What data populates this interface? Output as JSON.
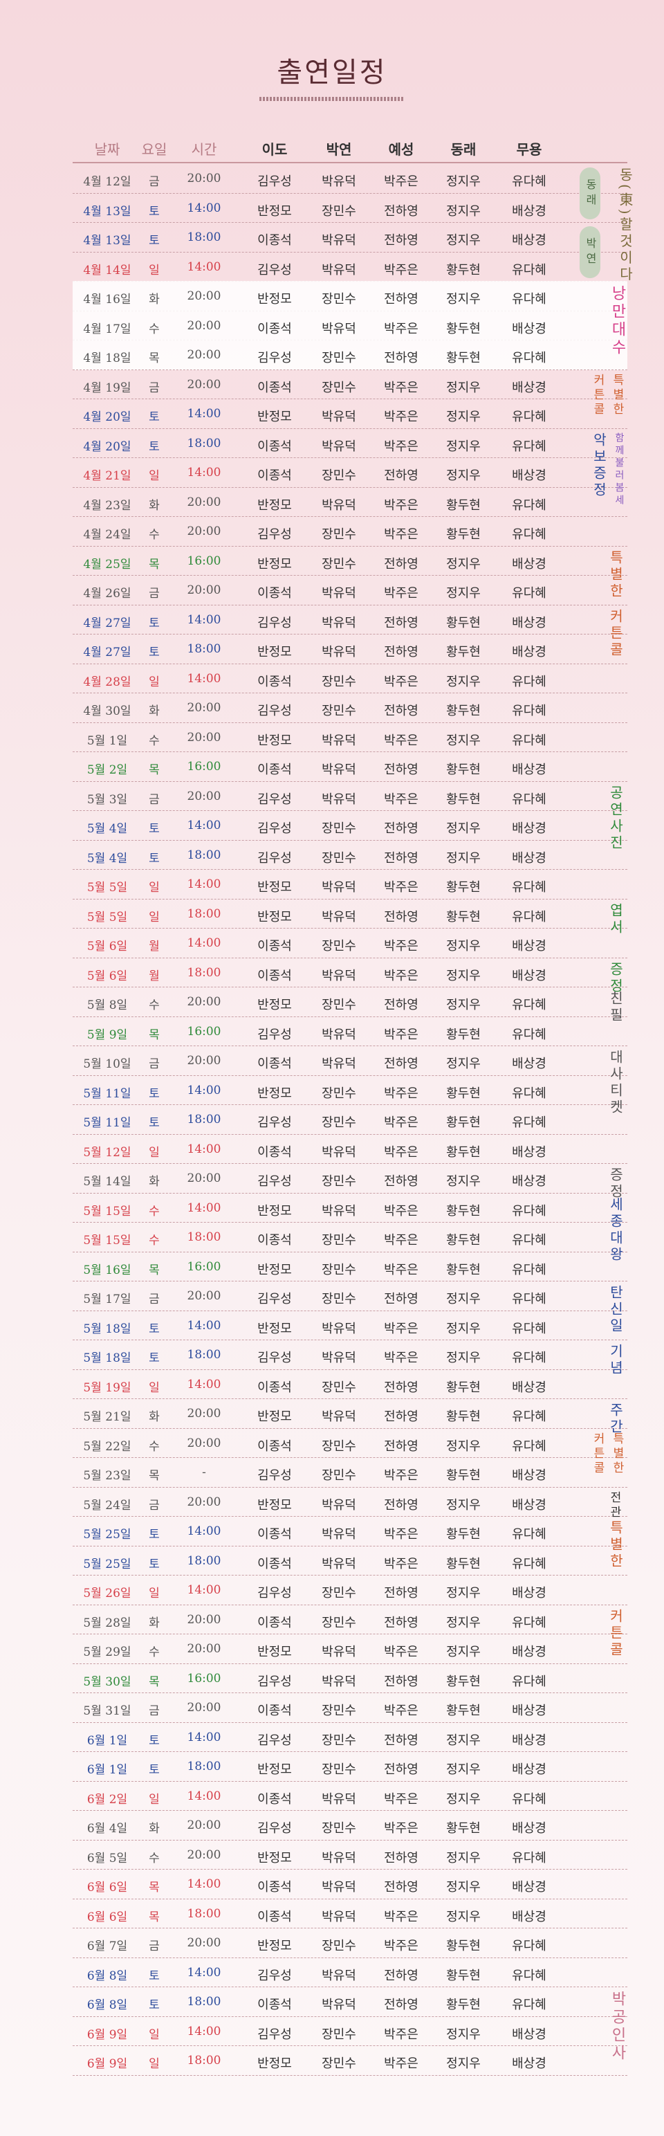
{
  "title": "출연일정",
  "colors": {
    "weekday": "#555555",
    "saturday": "#2d4c9c",
    "sunday": "#d6404a",
    "special": "#2f8a3a",
    "header_muted": "#b57b84"
  },
  "header": [
    "날짜",
    "요일",
    "시간",
    "이도",
    "박연",
    "예성",
    "동래",
    "무용"
  ],
  "rows": [
    [
      "4월 12일",
      "금",
      "20:00",
      "김우성",
      "박유덕",
      "박주은",
      "정지우",
      "유다혜",
      "wd"
    ],
    [
      "4월 13일",
      "토",
      "14:00",
      "반정모",
      "장민수",
      "전하영",
      "정지우",
      "배상경",
      "sat"
    ],
    [
      "4월 13일",
      "토",
      "18:00",
      "이종석",
      "박유덕",
      "전하영",
      "정지우",
      "배상경",
      "sat"
    ],
    [
      "4월 14일",
      "일",
      "14:00",
      "김우성",
      "박유덕",
      "박주은",
      "황두현",
      "유다혜",
      "sun"
    ],
    [
      "4월 16일",
      "화",
      "20:00",
      "반정모",
      "장민수",
      "전하영",
      "정지우",
      "유다혜",
      "wd"
    ],
    [
      "4월 17일",
      "수",
      "20:00",
      "이종석",
      "박유덕",
      "박주은",
      "황두현",
      "배상경",
      "wd"
    ],
    [
      "4월 18일",
      "목",
      "20:00",
      "김우성",
      "장민수",
      "전하영",
      "황두현",
      "유다혜",
      "wd"
    ],
    [
      "4월 19일",
      "금",
      "20:00",
      "이종석",
      "장민수",
      "박주은",
      "정지우",
      "배상경",
      "wd"
    ],
    [
      "4월 20일",
      "토",
      "14:00",
      "반정모",
      "박유덕",
      "박주은",
      "정지우",
      "유다혜",
      "sat"
    ],
    [
      "4월 20일",
      "토",
      "18:00",
      "이종석",
      "박유덕",
      "박주은",
      "정지우",
      "유다혜",
      "sat"
    ],
    [
      "4월 21일",
      "일",
      "14:00",
      "이종석",
      "장민수",
      "전하영",
      "정지우",
      "배상경",
      "sun"
    ],
    [
      "4월 23일",
      "화",
      "20:00",
      "반정모",
      "박유덕",
      "박주은",
      "황두현",
      "유다혜",
      "wd"
    ],
    [
      "4월 24일",
      "수",
      "20:00",
      "김우성",
      "장민수",
      "박주은",
      "황두현",
      "유다혜",
      "wd"
    ],
    [
      "4월 25일",
      "목",
      "16:00",
      "반정모",
      "장민수",
      "전하영",
      "정지우",
      "배상경",
      "thu16"
    ],
    [
      "4월 26일",
      "금",
      "20:00",
      "이종석",
      "박유덕",
      "박주은",
      "정지우",
      "유다혜",
      "wd"
    ],
    [
      "4월 27일",
      "토",
      "14:00",
      "김우성",
      "박유덕",
      "전하영",
      "황두현",
      "배상경",
      "sat"
    ],
    [
      "4월 27일",
      "토",
      "18:00",
      "반정모",
      "박유덕",
      "전하영",
      "황두현",
      "배상경",
      "sat"
    ],
    [
      "4월 28일",
      "일",
      "14:00",
      "이종석",
      "장민수",
      "박주은",
      "정지우",
      "유다혜",
      "sun"
    ],
    [
      "4월 30일",
      "화",
      "20:00",
      "김우성",
      "장민수",
      "전하영",
      "황두현",
      "유다혜",
      "wd"
    ],
    [
      "5월 1일",
      "수",
      "20:00",
      "반정모",
      "박유덕",
      "박주은",
      "정지우",
      "유다혜",
      "wd"
    ],
    [
      "5월 2일",
      "목",
      "16:00",
      "이종석",
      "박유덕",
      "전하영",
      "황두현",
      "배상경",
      "thu16"
    ],
    [
      "5월 3일",
      "금",
      "20:00",
      "김우성",
      "박유덕",
      "박주은",
      "황두현",
      "유다혜",
      "wd"
    ],
    [
      "5월 4일",
      "토",
      "14:00",
      "김우성",
      "장민수",
      "전하영",
      "정지우",
      "배상경",
      "sat"
    ],
    [
      "5월 4일",
      "토",
      "18:00",
      "김우성",
      "장민수",
      "전하영",
      "정지우",
      "배상경",
      "sat"
    ],
    [
      "5월 5일",
      "일",
      "14:00",
      "반정모",
      "박유덕",
      "박주은",
      "황두현",
      "유다혜",
      "sun"
    ],
    [
      "5월 5일",
      "일",
      "18:00",
      "반정모",
      "박유덕",
      "전하영",
      "황두현",
      "유다혜",
      "sun"
    ],
    [
      "5월 6일",
      "월",
      "14:00",
      "이종석",
      "장민수",
      "박주은",
      "정지우",
      "배상경",
      "sun"
    ],
    [
      "5월 6일",
      "월",
      "18:00",
      "이종석",
      "박유덕",
      "박주은",
      "정지우",
      "배상경",
      "sun"
    ],
    [
      "5월 8일",
      "수",
      "20:00",
      "반정모",
      "장민수",
      "전하영",
      "정지우",
      "유다혜",
      "wd"
    ],
    [
      "5월 9일",
      "목",
      "16:00",
      "김우성",
      "박유덕",
      "박주은",
      "황두현",
      "유다혜",
      "thu16"
    ],
    [
      "5월 10일",
      "금",
      "20:00",
      "이종석",
      "박유덕",
      "전하영",
      "정지우",
      "배상경",
      "wd"
    ],
    [
      "5월 11일",
      "토",
      "14:00",
      "반정모",
      "장민수",
      "박주은",
      "황두현",
      "유다혜",
      "sat"
    ],
    [
      "5월 11일",
      "토",
      "18:00",
      "김우성",
      "장민수",
      "박주은",
      "황두현",
      "유다혜",
      "sat"
    ],
    [
      "5월 12일",
      "일",
      "14:00",
      "이종석",
      "박유덕",
      "박주은",
      "황두현",
      "배상경",
      "sun"
    ],
    [
      "5월 14일",
      "화",
      "20:00",
      "김우성",
      "장민수",
      "전하영",
      "정지우",
      "배상경",
      "wd"
    ],
    [
      "5월 15일",
      "수",
      "14:00",
      "반정모",
      "박유덕",
      "박주은",
      "황두현",
      "유다혜",
      "sun"
    ],
    [
      "5월 15일",
      "수",
      "18:00",
      "이종석",
      "장민수",
      "박주은",
      "황두현",
      "유다혜",
      "sun"
    ],
    [
      "5월 16일",
      "목",
      "16:00",
      "반정모",
      "장민수",
      "박주은",
      "황두현",
      "유다혜",
      "thu16"
    ],
    [
      "5월 17일",
      "금",
      "20:00",
      "김우성",
      "장민수",
      "전하영",
      "정지우",
      "유다혜",
      "wd"
    ],
    [
      "5월 18일",
      "토",
      "14:00",
      "반정모",
      "박유덕",
      "박주은",
      "정지우",
      "유다혜",
      "sat"
    ],
    [
      "5월 18일",
      "토",
      "18:00",
      "김우성",
      "박유덕",
      "박주은",
      "정지우",
      "유다혜",
      "sat"
    ],
    [
      "5월 19일",
      "일",
      "14:00",
      "이종석",
      "장민수",
      "전하영",
      "황두현",
      "배상경",
      "sun"
    ],
    [
      "5월 21일",
      "화",
      "20:00",
      "반정모",
      "박유덕",
      "전하영",
      "황두현",
      "유다혜",
      "wd"
    ],
    [
      "5월 22일",
      "수",
      "20:00",
      "이종석",
      "장민수",
      "전하영",
      "정지우",
      "유다혜",
      "wd"
    ],
    [
      "5월 23일",
      "목",
      "-",
      "김우성",
      "장민수",
      "박주은",
      "황두현",
      "배상경",
      "wd"
    ],
    [
      "5월 24일",
      "금",
      "20:00",
      "반정모",
      "박유덕",
      "전하영",
      "정지우",
      "배상경",
      "wd"
    ],
    [
      "5월 25일",
      "토",
      "14:00",
      "이종석",
      "박유덕",
      "박주은",
      "황두현",
      "유다혜",
      "sat"
    ],
    [
      "5월 25일",
      "토",
      "18:00",
      "이종석",
      "박유덕",
      "박주은",
      "황두현",
      "유다혜",
      "sat"
    ],
    [
      "5월 26일",
      "일",
      "14:00",
      "김우성",
      "장민수",
      "전하영",
      "정지우",
      "배상경",
      "sun"
    ],
    [
      "5월 28일",
      "화",
      "20:00",
      "이종석",
      "장민수",
      "전하영",
      "정지우",
      "유다혜",
      "wd"
    ],
    [
      "5월 29일",
      "수",
      "20:00",
      "반정모",
      "박유덕",
      "박주은",
      "정지우",
      "배상경",
      "wd"
    ],
    [
      "5월 30일",
      "목",
      "16:00",
      "김우성",
      "박유덕",
      "전하영",
      "황두현",
      "유다혜",
      "thu16"
    ],
    [
      "5월 31일",
      "금",
      "20:00",
      "이종석",
      "장민수",
      "박주은",
      "황두현",
      "배상경",
      "wd"
    ],
    [
      "6월 1일",
      "토",
      "14:00",
      "김우성",
      "장민수",
      "전하영",
      "정지우",
      "배상경",
      "sat"
    ],
    [
      "6월 1일",
      "토",
      "18:00",
      "반정모",
      "장민수",
      "전하영",
      "정지우",
      "배상경",
      "sat"
    ],
    [
      "6월 2일",
      "일",
      "14:00",
      "이종석",
      "박유덕",
      "박주은",
      "정지우",
      "유다혜",
      "sun"
    ],
    [
      "6월 4일",
      "화",
      "20:00",
      "김우성",
      "장민수",
      "박주은",
      "황두현",
      "배상경",
      "wd"
    ],
    [
      "6월 5일",
      "수",
      "20:00",
      "반정모",
      "박유덕",
      "전하영",
      "정지우",
      "유다혜",
      "wd"
    ],
    [
      "6월 6일",
      "목",
      "14:00",
      "이종석",
      "박유덕",
      "전하영",
      "정지우",
      "배상경",
      "sun"
    ],
    [
      "6월 6일",
      "목",
      "18:00",
      "이종석",
      "박유덕",
      "박주은",
      "정지우",
      "배상경",
      "sun"
    ],
    [
      "6월 7일",
      "금",
      "20:00",
      "반정모",
      "장민수",
      "박주은",
      "황두현",
      "유다혜",
      "wd"
    ],
    [
      "6월 8일",
      "토",
      "14:00",
      "김우성",
      "박유덕",
      "전하영",
      "황두현",
      "유다혜",
      "sat"
    ],
    [
      "6월 8일",
      "토",
      "18:00",
      "이종석",
      "박유덕",
      "전하영",
      "황두현",
      "유다혜",
      "sat"
    ],
    [
      "6월 9일",
      "일",
      "14:00",
      "김우성",
      "장민수",
      "박주은",
      "정지우",
      "배상경",
      "sun"
    ],
    [
      "6월 9일",
      "일",
      "18:00",
      "반정모",
      "장민수",
      "박주은",
      "정지우",
      "배상경",
      "sun"
    ]
  ],
  "side_notes": [
    {
      "text": "동(東)할것이다",
      "color": "#7a6a3a",
      "row": 0,
      "size": 20
    },
    {
      "text": "동래",
      "color": "#4c6b44",
      "row": 0,
      "pill": true
    },
    {
      "text": "박연",
      "color": "#4c6b44",
      "row": 2,
      "pill": true
    },
    {
      "text": "낭만대수",
      "color": "#d6408a",
      "row": 4,
      "size": 22
    },
    {
      "text": "특별한",
      "color": "#d06030",
      "row": 7,
      "size": 17
    },
    {
      "text": "커튼콜",
      "color": "#d06030",
      "row": 7,
      "size": 17
    },
    {
      "text": "악보증정",
      "color": "#2d4c9c",
      "row": 9,
      "size": 20
    },
    {
      "text": "함께불러봄세",
      "color": "#8a5cc0",
      "row": 9,
      "size": 14
    },
    {
      "text": "특별한",
      "color": "#d06030",
      "row": 13,
      "size": 20
    },
    {
      "text": "커튼콜",
      "color": "#d06030",
      "row": 15,
      "size": 20
    },
    {
      "text": "공연사진",
      "color": "#2f8a3a",
      "row": 21,
      "size": 20
    },
    {
      "text": "엽서",
      "color": "#2f8a3a",
      "row": 25,
      "size": 20
    },
    {
      "text": "증정",
      "color": "#2f8a3a",
      "row": 27,
      "size": 20
    },
    {
      "text": "친필",
      "color": "#555555",
      "row": 28,
      "size": 20
    },
    {
      "text": "대사티켓",
      "color": "#555555",
      "row": 30,
      "size": 20
    },
    {
      "text": "증정",
      "color": "#555555",
      "row": 34,
      "size": 20
    },
    {
      "text": "세종대왕",
      "color": "#2d4c9c",
      "row": 35,
      "size": 20
    },
    {
      "text": "탄신일",
      "color": "#2d4c9c",
      "row": 38,
      "size": 20
    },
    {
      "text": "기념",
      "color": "#2d4c9c",
      "row": 40,
      "size": 20
    },
    {
      "text": "주간",
      "color": "#2d4c9c",
      "row": 42,
      "size": 20
    },
    {
      "text": "특별한",
      "color": "#d06030",
      "row": 43,
      "size": 17
    },
    {
      "text": "커튼콜",
      "color": "#d06030",
      "row": 43,
      "size": 17
    },
    {
      "text": "전관",
      "color": "#333333",
      "row": 45,
      "size": 17
    },
    {
      "text": "특별한",
      "color": "#d06030",
      "row": 46,
      "size": 20
    },
    {
      "text": "커튼콜",
      "color": "#d06030",
      "row": 49,
      "size": 20
    },
    {
      "text": "박공인사",
      "color": "#c8708a",
      "row": 62,
      "size": 22
    }
  ]
}
